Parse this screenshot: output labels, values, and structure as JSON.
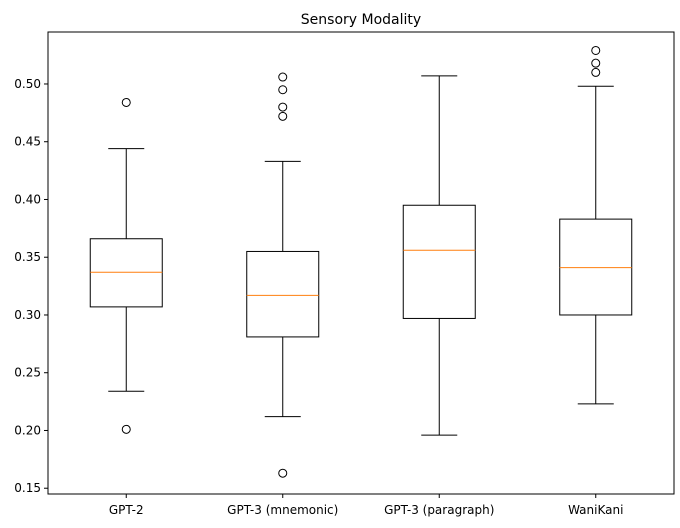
{
  "chart_data": {
    "type": "box",
    "title": "Sensory Modality",
    "xlabel": "",
    "ylabel": "",
    "ylim": [
      0.145,
      0.545
    ],
    "yticks": [
      0.15,
      0.2,
      0.25,
      0.3,
      0.35,
      0.4,
      0.45,
      0.5
    ],
    "ytick_labels": [
      "0.15",
      "0.20",
      "0.25",
      "0.30",
      "0.35",
      "0.40",
      "0.45",
      "0.50"
    ],
    "categories": [
      "GPT-2",
      "GPT-3 (mnemonic)",
      "GPT-3 (paragraph)",
      "WaniKani"
    ],
    "boxes": [
      {
        "label": "GPT-2",
        "whisker_low": 0.234,
        "q1": 0.307,
        "median": 0.337,
        "q3": 0.366,
        "whisker_high": 0.444,
        "outliers": [
          0.484,
          0.201
        ]
      },
      {
        "label": "GPT-3 (mnemonic)",
        "whisker_low": 0.212,
        "q1": 0.281,
        "median": 0.317,
        "q3": 0.355,
        "whisker_high": 0.433,
        "outliers": [
          0.506,
          0.495,
          0.48,
          0.472,
          0.163
        ]
      },
      {
        "label": "GPT-3 (paragraph)",
        "whisker_low": 0.196,
        "q1": 0.297,
        "median": 0.356,
        "q3": 0.395,
        "whisker_high": 0.507,
        "outliers": []
      },
      {
        "label": "WaniKani",
        "whisker_low": 0.223,
        "q1": 0.3,
        "median": 0.341,
        "q3": 0.383,
        "whisker_high": 0.498,
        "outliers": [
          0.529,
          0.518,
          0.51
        ]
      }
    ],
    "grid": false,
    "colors": {
      "box": "#000000",
      "median": "#ff7f0e",
      "outlier": "#000000"
    }
  }
}
